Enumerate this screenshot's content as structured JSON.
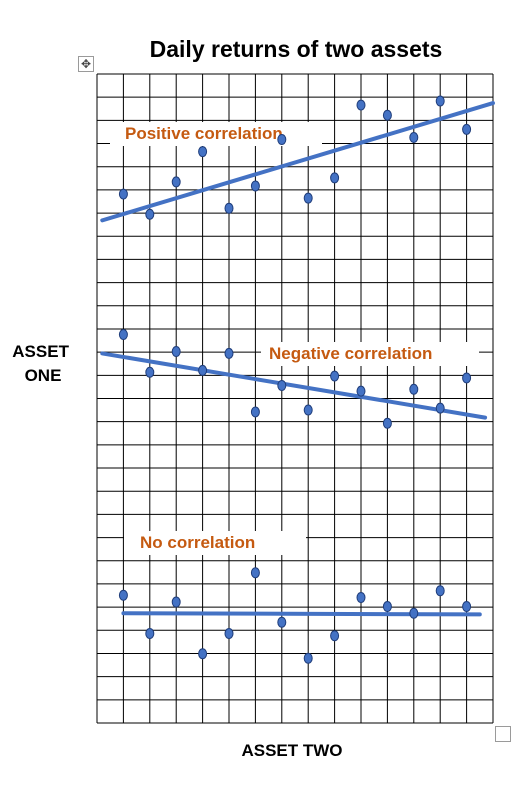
{
  "chart_data": {
    "type": "scatter",
    "title": "Daily returns of two assets",
    "xlabel": "ASSET TWO",
    "ylabel": "ASSET ONE",
    "grid": true,
    "colors": {
      "points": "#4472c4",
      "point_outline": "#1f3d7a",
      "trend": "#4472c4",
      "labels": "#c55a11",
      "grid": "#000000"
    },
    "panels": [
      {
        "label": "Positive correlation",
        "ylim": [
          0,
          9
        ],
        "x": [
          1,
          2,
          3,
          4,
          5,
          6,
          7,
          8,
          9,
          10,
          11,
          12,
          13,
          14
        ],
        "y": [
          4.2,
          3.2,
          4.8,
          6.3,
          3.5,
          4.6,
          6.9,
          4.0,
          5.0,
          8.6,
          8.1,
          7.0,
          8.8,
          7.4
        ],
        "trend": {
          "x": [
            0.2,
            15.0
          ],
          "y": [
            2.9,
            8.7
          ]
        }
      },
      {
        "label": "Negative correlation",
        "ylim": [
          0,
          8
        ],
        "x": [
          1,
          2,
          3,
          4,
          5,
          6,
          7,
          8,
          9,
          10,
          11,
          12,
          13,
          14
        ],
        "y": [
          7.6,
          5.6,
          6.7,
          5.7,
          6.6,
          3.5,
          4.9,
          3.6,
          5.4,
          4.6,
          2.9,
          4.7,
          3.7,
          5.3
        ],
        "trend": {
          "x": [
            0.2,
            14.7
          ],
          "y": [
            6.6,
            3.2
          ]
        }
      },
      {
        "label": "No correlation",
        "ylim": [
          0,
          8
        ],
        "x": [
          1,
          2,
          3,
          4,
          5,
          6,
          7,
          8,
          9,
          10,
          11,
          12,
          13,
          14
        ],
        "y": [
          5.1,
          3.4,
          4.8,
          2.5,
          3.4,
          6.1,
          3.9,
          2.3,
          3.3,
          5.0,
          4.6,
          4.3,
          5.3,
          4.6
        ],
        "trend": {
          "x": [
            1.0,
            14.5
          ],
          "y": [
            4.3,
            4.25
          ]
        }
      }
    ]
  }
}
